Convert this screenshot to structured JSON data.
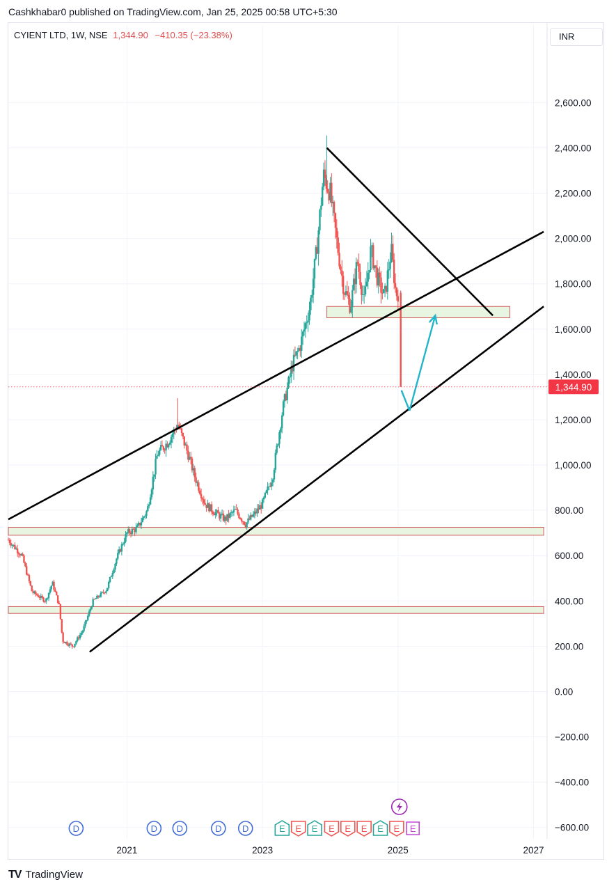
{
  "header": {
    "publisher_line": "Cashkhabar0 published on TradingView.com, Jan 25, 2025 00:58 UTC+5:30",
    "symbol": "CYIENT LTD, 1W, NSE",
    "last_price": "1,344.90",
    "change": "−410.35 (−23.38%)",
    "currency": "INR"
  },
  "footer": {
    "brand": "TradingView",
    "brand_logo": "TV"
  },
  "colors": {
    "up": "#26a69a",
    "down": "#ef5350",
    "price_label": "#f23645",
    "arrow": "#22b4c8",
    "dividend": "#3f6ad8",
    "earnings_up": "#26a69a",
    "earnings_down": "#ef5350",
    "earnings_future": "#c046d8"
  },
  "chart_data": {
    "type": "candlestick",
    "y_axis": {
      "ticks": [
        "2,600.00",
        "2,400.00",
        "2,200.00",
        "2,000.00",
        "1,800.00",
        "1,600.00",
        "1,400.00",
        "1,200.00",
        "1,000.00",
        "800.00",
        "600.00",
        "400.00",
        "200.00",
        "0.00",
        "−200.00",
        "−400.00",
        "−600.00"
      ],
      "range": [
        -650,
        2850
      ]
    },
    "x_axis": {
      "ticks": [
        "2021",
        "2023",
        "2025",
        "2027"
      ],
      "range": [
        2019.25,
        2027.2
      ]
    },
    "last_price_label": "1,344.90",
    "last_price": 1344.9,
    "price_anchors": [
      [
        2019.25,
        670
      ],
      [
        2019.45,
        600
      ],
      [
        2019.6,
        440
      ],
      [
        2019.8,
        400
      ],
      [
        2019.9,
        480
      ],
      [
        2020.0,
        380
      ],
      [
        2020.05,
        225
      ],
      [
        2020.2,
        200
      ],
      [
        2020.35,
        270
      ],
      [
        2020.5,
        400
      ],
      [
        2020.7,
        450
      ],
      [
        2020.85,
        590
      ],
      [
        2021.0,
        700
      ],
      [
        2021.15,
        720
      ],
      [
        2021.3,
        800
      ],
      [
        2021.45,
        1050
      ],
      [
        2021.6,
        1100
      ],
      [
        2021.75,
        1180
      ],
      [
        2021.9,
        1050
      ],
      [
        2022.0,
        950
      ],
      [
        2022.15,
        830
      ],
      [
        2022.3,
        790
      ],
      [
        2022.45,
        760
      ],
      [
        2022.6,
        800
      ],
      [
        2022.75,
        740
      ],
      [
        2022.9,
        790
      ],
      [
        2023.0,
        830
      ],
      [
        2023.15,
        950
      ],
      [
        2023.3,
        1250
      ],
      [
        2023.45,
        1450
      ],
      [
        2023.55,
        1520
      ],
      [
        2023.7,
        1700
      ],
      [
        2023.8,
        1950
      ],
      [
        2023.9,
        2280
      ],
      [
        2024.0,
        2200
      ],
      [
        2024.1,
        1980
      ],
      [
        2024.2,
        1780
      ],
      [
        2024.3,
        1700
      ],
      [
        2024.4,
        1900
      ],
      [
        2024.5,
        1720
      ],
      [
        2024.6,
        1950
      ],
      [
        2024.7,
        1820
      ],
      [
        2024.8,
        1740
      ],
      [
        2024.9,
        1950
      ],
      [
        2024.97,
        1755
      ],
      [
        2025.0,
        1760
      ],
      [
        2025.04,
        1344.9
      ]
    ],
    "spikes": [
      {
        "x": 2021.75,
        "high": 1295
      },
      {
        "x": 2023.95,
        "high": 2455
      }
    ],
    "trendlines": [
      {
        "name": "upper channel",
        "from": [
          2019.25,
          760
        ],
        "to": [
          2027.15,
          2030
        ]
      },
      {
        "name": "lower channel",
        "from": [
          2020.45,
          175
        ],
        "to": [
          2027.15,
          1700
        ]
      },
      {
        "name": "descending resistance",
        "from": [
          2023.95,
          2400
        ],
        "to": [
          2026.4,
          1660
        ]
      }
    ],
    "zones": [
      {
        "x0": 2023.95,
        "x1": 2026.65,
        "y0": 1650,
        "y1": 1700,
        "fill": "#e8f5e0"
      },
      {
        "x0": 2019.25,
        "x1": 2027.15,
        "y0": 690,
        "y1": 725,
        "fill": "#e8f5e0"
      },
      {
        "x0": 2019.25,
        "x1": 2027.15,
        "y0": 345,
        "y1": 375,
        "fill": "#e8f5e0"
      }
    ],
    "projection_arrows": [
      {
        "from": [
          2025.05,
          1330
        ],
        "to": [
          2025.17,
          1240
        ]
      },
      {
        "from": [
          2025.17,
          1240
        ],
        "to": [
          2025.55,
          1660
        ]
      }
    ],
    "events": [
      {
        "type": "dividend",
        "x": 2020.25,
        "label": "D"
      },
      {
        "type": "dividend",
        "x": 2021.4,
        "label": "D"
      },
      {
        "type": "dividend",
        "x": 2021.78,
        "label": "D"
      },
      {
        "type": "dividend",
        "x": 2022.35,
        "label": "D"
      },
      {
        "type": "dividend",
        "x": 2022.75,
        "label": "D"
      },
      {
        "type": "earnings_up",
        "x": 2023.29,
        "label": "E"
      },
      {
        "type": "earnings_down",
        "x": 2023.53,
        "label": "E"
      },
      {
        "type": "earnings_up",
        "x": 2023.77,
        "label": "E"
      },
      {
        "type": "earnings_down",
        "x": 2024.02,
        "label": "E"
      },
      {
        "type": "earnings_down",
        "x": 2024.26,
        "label": "E"
      },
      {
        "type": "earnings_down",
        "x": 2024.5,
        "label": "E"
      },
      {
        "type": "earnings_up",
        "x": 2024.74,
        "label": "E"
      },
      {
        "type": "earnings_down",
        "x": 2024.98,
        "label": "E"
      },
      {
        "type": "earnings_future",
        "x": 2025.22,
        "label": "E"
      }
    ],
    "split_marker": {
      "x": 2025.02,
      "icon": "lightning-icon"
    }
  }
}
